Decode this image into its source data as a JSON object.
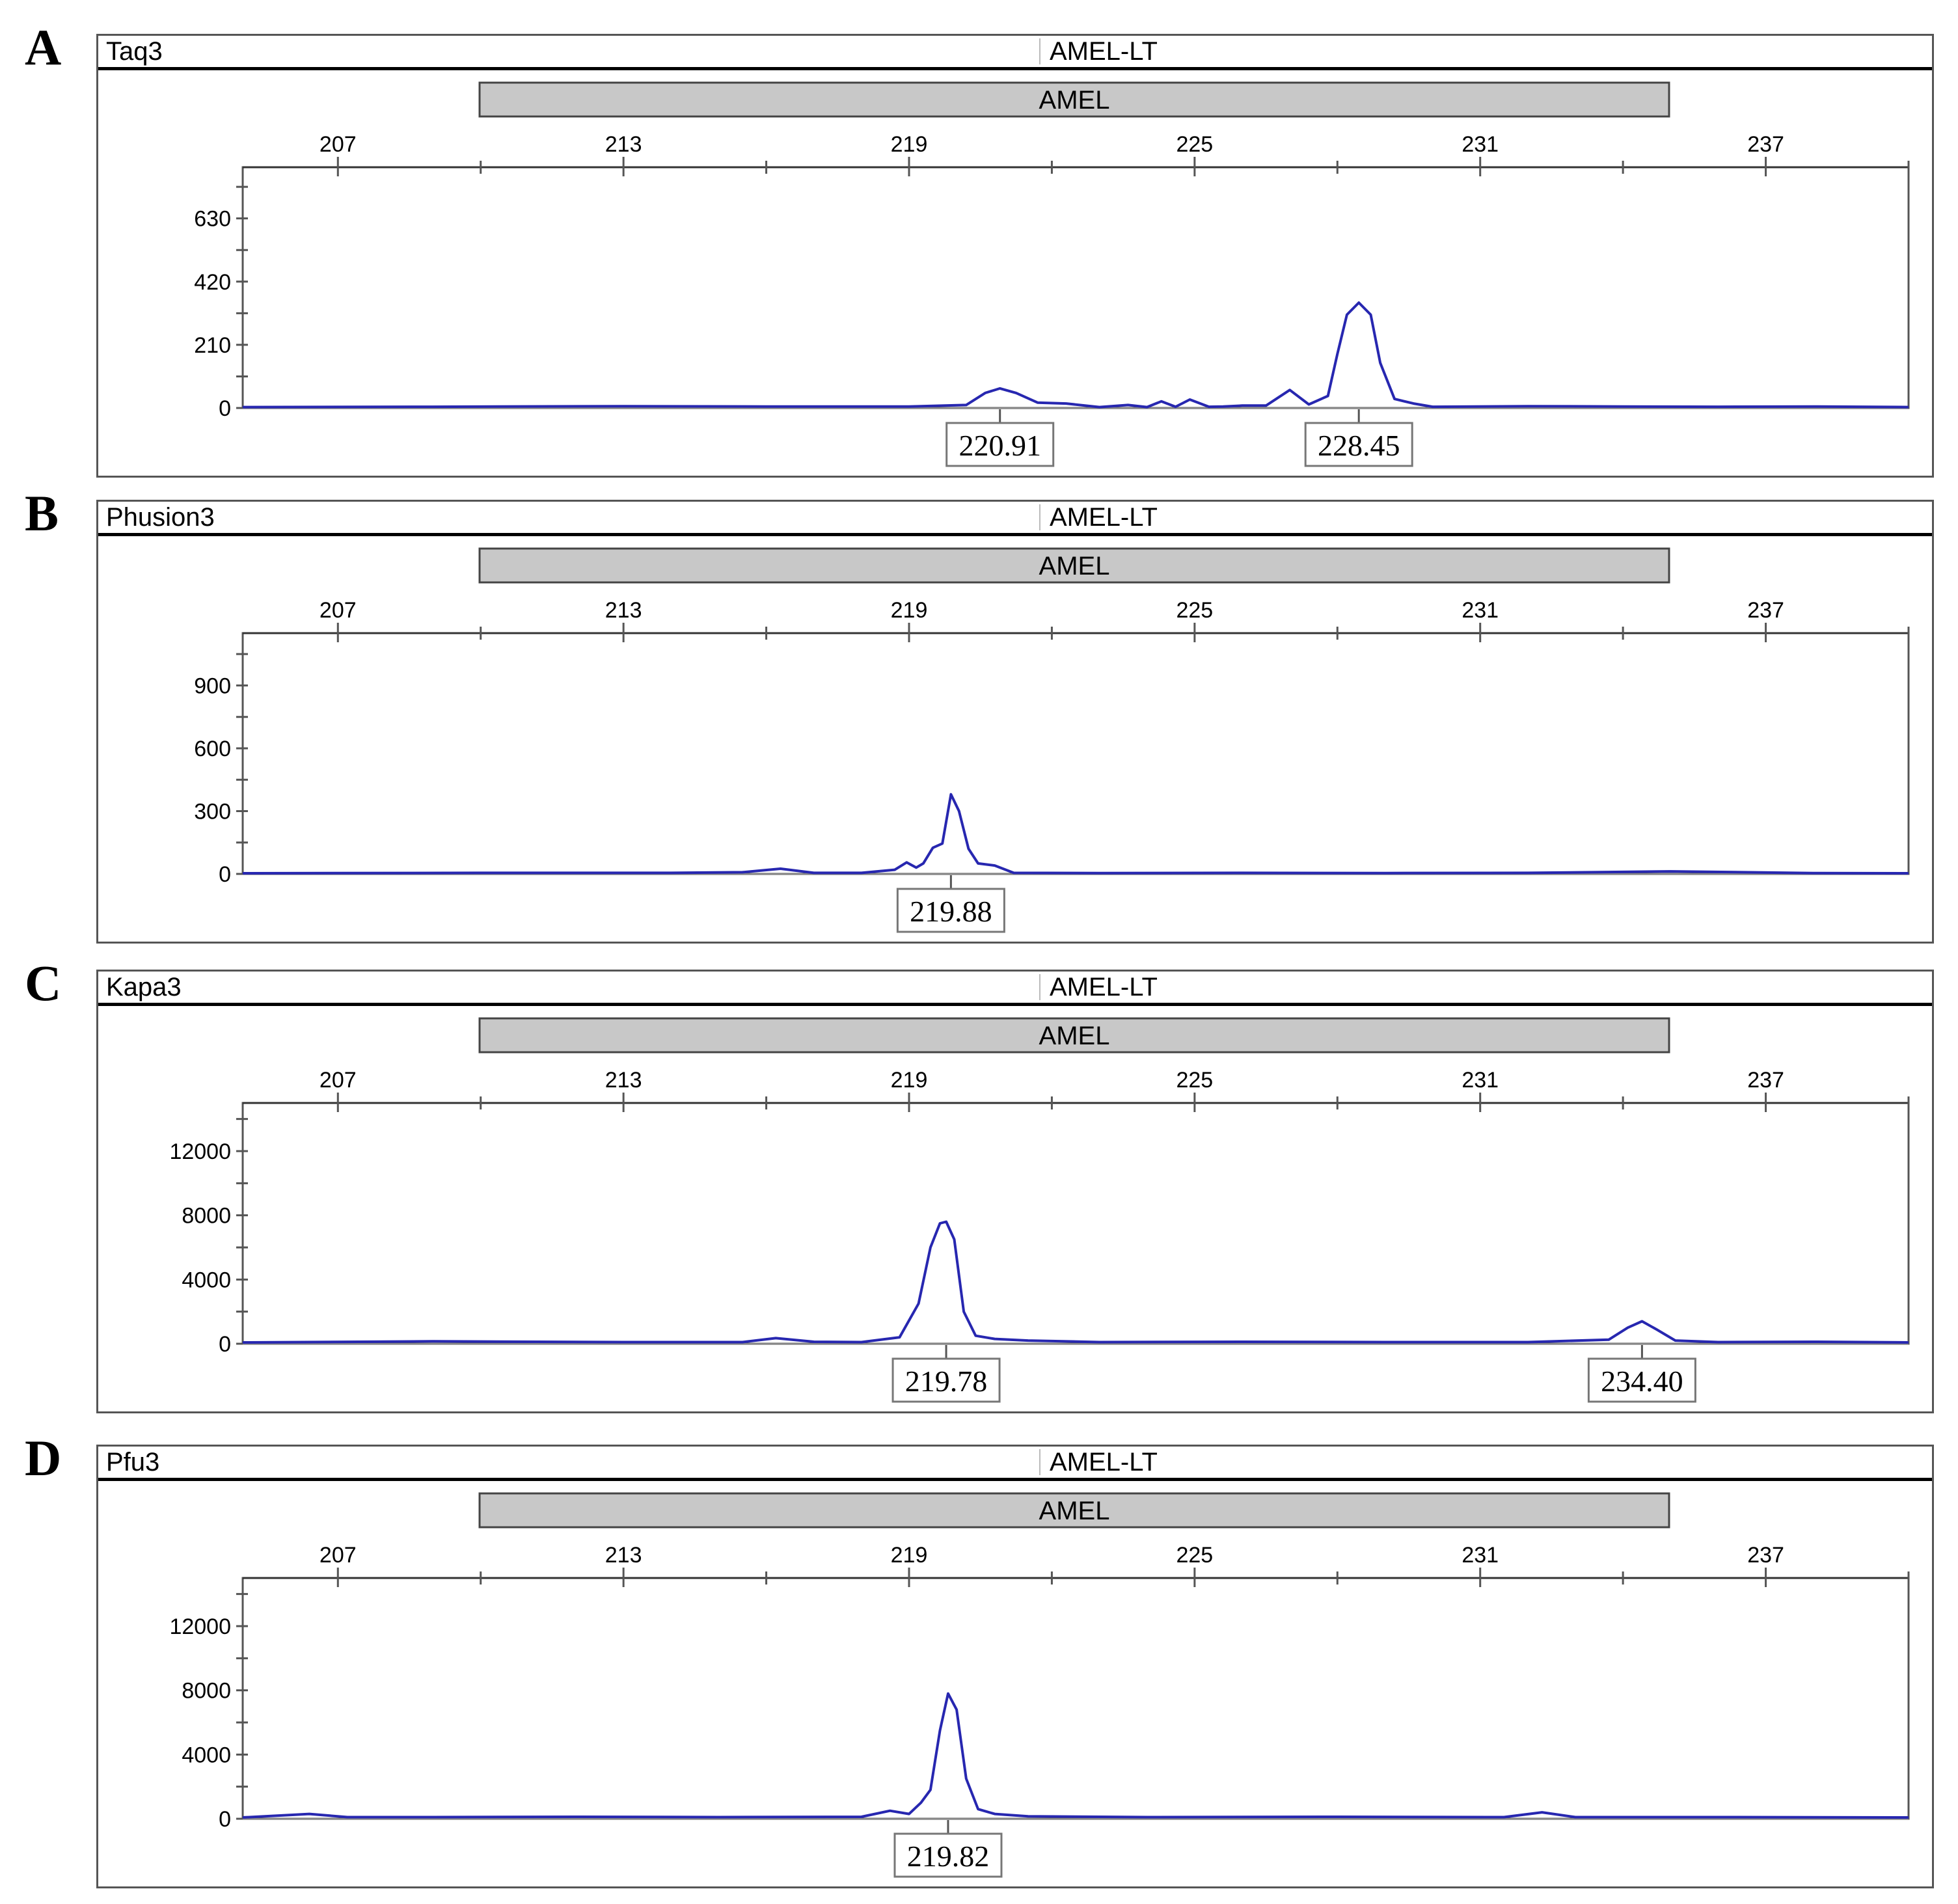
{
  "chart_data": [
    {
      "panel": "A",
      "type": "line",
      "sample": "Taq3",
      "dye": "AMEL-LT",
      "marker": "AMEL",
      "x_ticks": [
        "207",
        "213",
        "219",
        "225",
        "231",
        "237"
      ],
      "y_ticks": [
        "630",
        "420",
        "210",
        "0"
      ],
      "xlim": [
        205,
        240
      ],
      "ylim": [
        0,
        800
      ],
      "peak_labels": [
        "220.91",
        "228.45"
      ],
      "series": [
        {
          "x": [
            205,
            209,
            213,
            216,
            219,
            220.2,
            220.6,
            220.91,
            221.25,
            221.7,
            222.3,
            223.0,
            223.6,
            224.0,
            224.3,
            224.6,
            224.9,
            225.3,
            225.6,
            226.0,
            226.5,
            227.0,
            227.4,
            227.8,
            228.0,
            228.2,
            228.45,
            228.7,
            228.9,
            229.2,
            229.6,
            230,
            232,
            234,
            236,
            238,
            240
          ],
          "y": [
            3,
            4,
            6,
            5,
            5,
            10,
            50,
            65,
            50,
            18,
            15,
            3,
            10,
            3,
            22,
            4,
            28,
            4,
            5,
            8,
            8,
            60,
            12,
            40,
            180,
            310,
            350,
            310,
            150,
            30,
            15,
            4,
            6,
            5,
            4,
            5,
            3
          ]
        }
      ]
    },
    {
      "panel": "B",
      "type": "line",
      "sample": "Phusion3",
      "dye": "AMEL-LT",
      "marker": "AMEL",
      "x_ticks": [
        "207",
        "213",
        "219",
        "225",
        "231",
        "237"
      ],
      "y_ticks": [
        "900",
        "600",
        "300",
        "0"
      ],
      "xlim": [
        205,
        240
      ],
      "ylim": [
        0,
        1150
      ],
      "peak_labels": [
        "219.88"
      ],
      "series": [
        {
          "x": [
            205,
            210,
            214,
            215.5,
            216.3,
            217,
            218,
            218.7,
            218.95,
            219.15,
            219.3,
            219.5,
            219.7,
            219.88,
            220.05,
            220.25,
            220.45,
            220.8,
            221.2,
            223,
            226,
            229,
            232,
            235,
            238,
            240
          ],
          "y": [
            3,
            5,
            5,
            8,
            25,
            5,
            5,
            20,
            55,
            30,
            50,
            125,
            145,
            380,
            300,
            120,
            50,
            40,
            5,
            4,
            5,
            4,
            5,
            12,
            4,
            3
          ]
        }
      ]
    },
    {
      "panel": "C",
      "type": "line",
      "sample": "Kapa3",
      "dye": "AMEL-LT",
      "marker": "AMEL",
      "x_ticks": [
        "207",
        "213",
        "219",
        "225",
        "231",
        "237"
      ],
      "y_ticks": [
        "12000",
        "8000",
        "4000",
        "0"
      ],
      "xlim": [
        205,
        240
      ],
      "ylim": [
        0,
        15000
      ],
      "peak_labels": [
        "219.78",
        "234.40"
      ],
      "series": [
        {
          "x": [
            205,
            209,
            213,
            215.5,
            216.2,
            217,
            218,
            218.8,
            219.2,
            219.45,
            219.65,
            219.78,
            219.95,
            220.15,
            220.4,
            220.8,
            221.5,
            223,
            226,
            229,
            232,
            233.7,
            234.1,
            234.4,
            234.7,
            235.1,
            236,
            238,
            240
          ],
          "y": [
            80,
            150,
            100,
            100,
            350,
            120,
            100,
            400,
            2500,
            6000,
            7500,
            7600,
            6500,
            2000,
            500,
            300,
            200,
            100,
            120,
            100,
            100,
            250,
            1000,
            1400,
            900,
            200,
            100,
            120,
            80
          ]
        }
      ]
    },
    {
      "panel": "D",
      "type": "line",
      "sample": "Pfu3",
      "dye": "AMEL-LT",
      "marker": "AMEL",
      "x_ticks": [
        "207",
        "213",
        "219",
        "225",
        "231",
        "237"
      ],
      "y_ticks": [
        "12000",
        "8000",
        "4000",
        "0"
      ],
      "xlim": [
        205,
        240
      ],
      "ylim": [
        0,
        15000
      ],
      "peak_labels": [
        "219.82"
      ],
      "series": [
        {
          "x": [
            205,
            206.4,
            207.2,
            209,
            212,
            215,
            218,
            218.6,
            219.0,
            219.25,
            219.45,
            219.65,
            219.82,
            220.0,
            220.2,
            220.45,
            220.8,
            221.5,
            224,
            228,
            231.5,
            232.3,
            233,
            236,
            240
          ],
          "y": [
            80,
            300,
            100,
            100,
            120,
            100,
            120,
            500,
            300,
            1000,
            1800,
            5500,
            7800,
            6800,
            2500,
            600,
            300,
            150,
            100,
            120,
            100,
            400,
            100,
            100,
            80
          ]
        }
      ]
    }
  ]
}
